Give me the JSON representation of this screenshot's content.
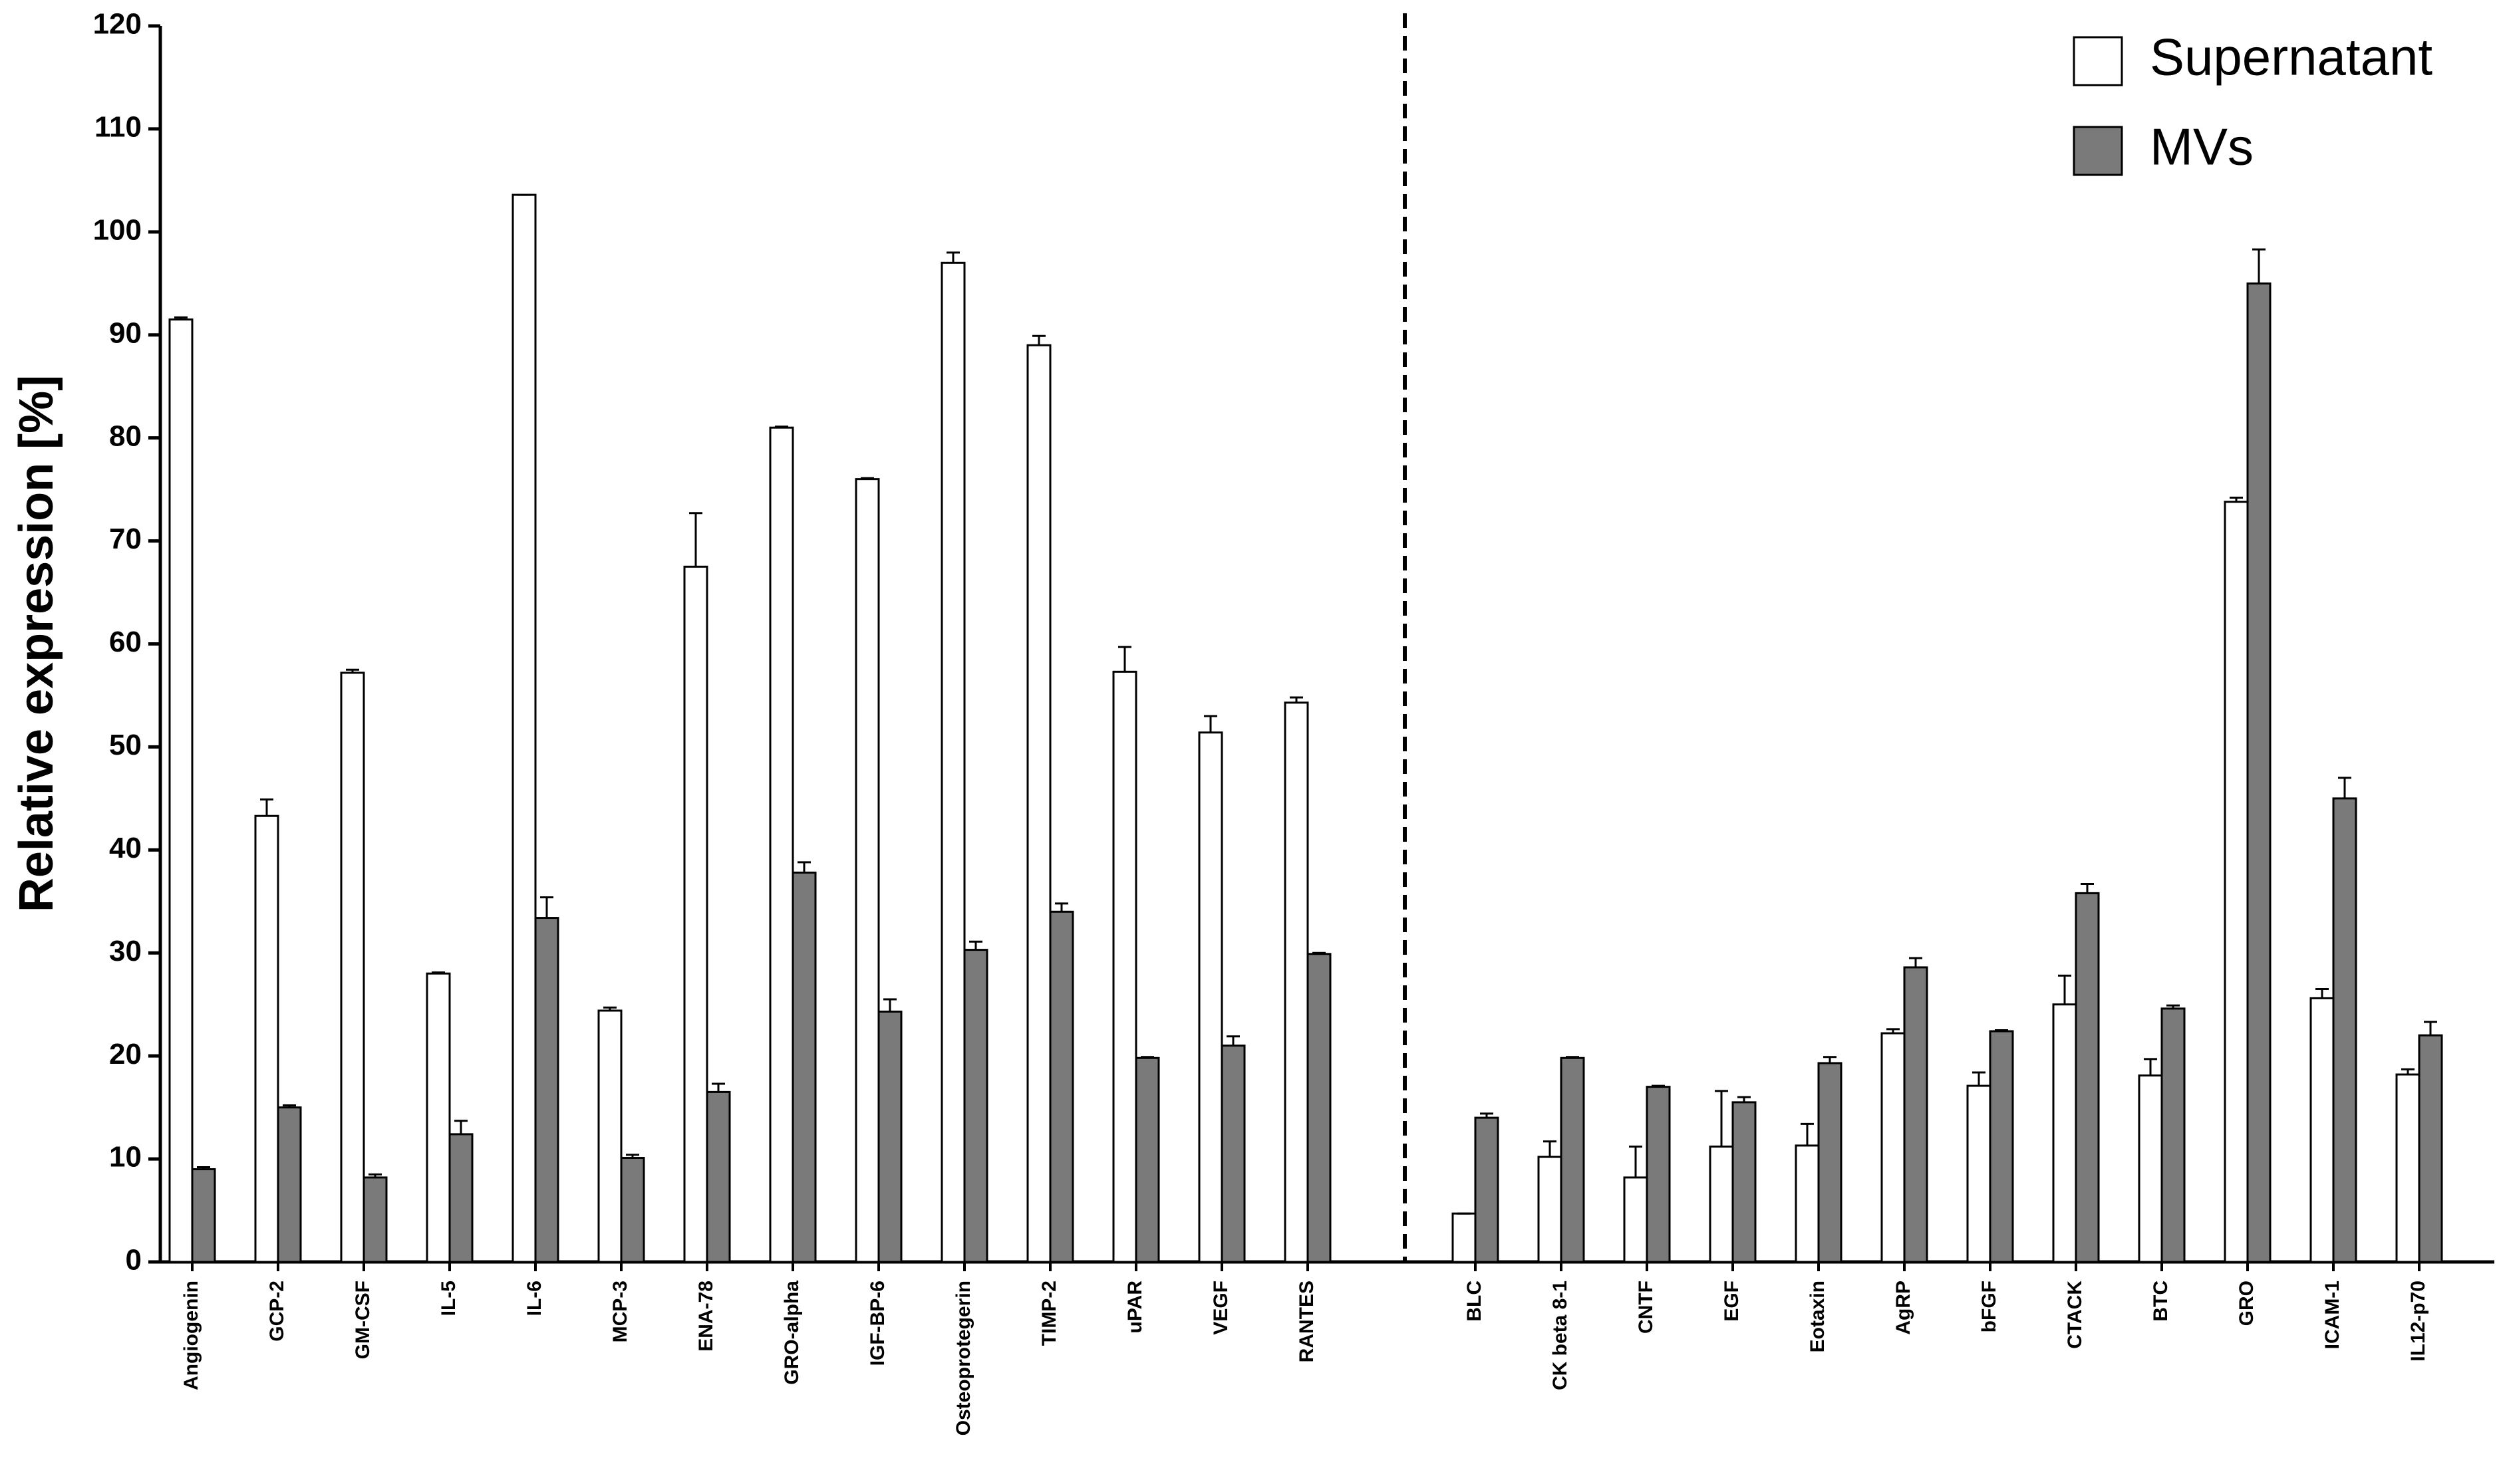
{
  "chart_data": {
    "type": "bar",
    "y_label": "Relative expression [%]",
    "categories": [
      "Angiogenin",
      "GCP-2",
      "GM-CSF",
      "IL-5",
      "IL-6",
      "MCP-3",
      "ENA-78",
      "GRO-alpha",
      "IGF-BP-6",
      "Osteoprotegerin",
      "TIMP-2",
      "uPAR",
      "VEGF",
      "RANTES",
      "BLC",
      "CK beta 8-1",
      "CNTF",
      "EGF",
      "Eotaxin",
      "AgRP",
      "bFGF",
      "CTACK",
      "BTC",
      "GRO",
      "ICAM-1",
      "IL12-p70"
    ],
    "series": [
      {
        "name": "Supernatant",
        "color": "#ffffff",
        "values": [
          91.5,
          43.3,
          57.2,
          28,
          103.6,
          24.4,
          67.5,
          81,
          76,
          97,
          89,
          57.3,
          51.4,
          54.3,
          4.7,
          10.2,
          8.2,
          11.2,
          11.3,
          22.2,
          17.1,
          25,
          18.1,
          73.8,
          25.6,
          18.2
        ],
        "errors": [
          0.2,
          1.6,
          0.3,
          0.1,
          0,
          0.3,
          5.2,
          0.1,
          0.1,
          1,
          0.9,
          2.4,
          1.6,
          0.5,
          0,
          1.5,
          3,
          5.4,
          2.1,
          0.4,
          1.3,
          2.8,
          1.6,
          0.4,
          0.9,
          0.5
        ]
      },
      {
        "name": "MVs",
        "color": "#7a7a7a",
        "values": [
          9,
          15,
          8.2,
          12.4,
          33.4,
          10.1,
          16.5,
          37.8,
          24.3,
          30.3,
          34,
          19.8,
          21,
          29.9,
          14,
          19.8,
          17,
          15.5,
          19.3,
          28.6,
          22.4,
          35.8,
          24.6,
          95,
          45,
          22
        ],
        "errors": [
          0.2,
          0.2,
          0.3,
          1.3,
          2,
          0.3,
          0.8,
          1,
          1.2,
          0.8,
          0.8,
          0.1,
          0.9,
          0.1,
          0.4,
          0.1,
          0.1,
          0.5,
          0.6,
          0.9,
          0.1,
          0.9,
          0.3,
          3.3,
          2,
          1.3
        ]
      }
    ],
    "ylim": [
      0,
      120
    ],
    "yticks": [
      0,
      10,
      20,
      30,
      40,
      50,
      60,
      70,
      80,
      90,
      100,
      110,
      120
    ],
    "grid": false,
    "legend": "top-right"
  }
}
